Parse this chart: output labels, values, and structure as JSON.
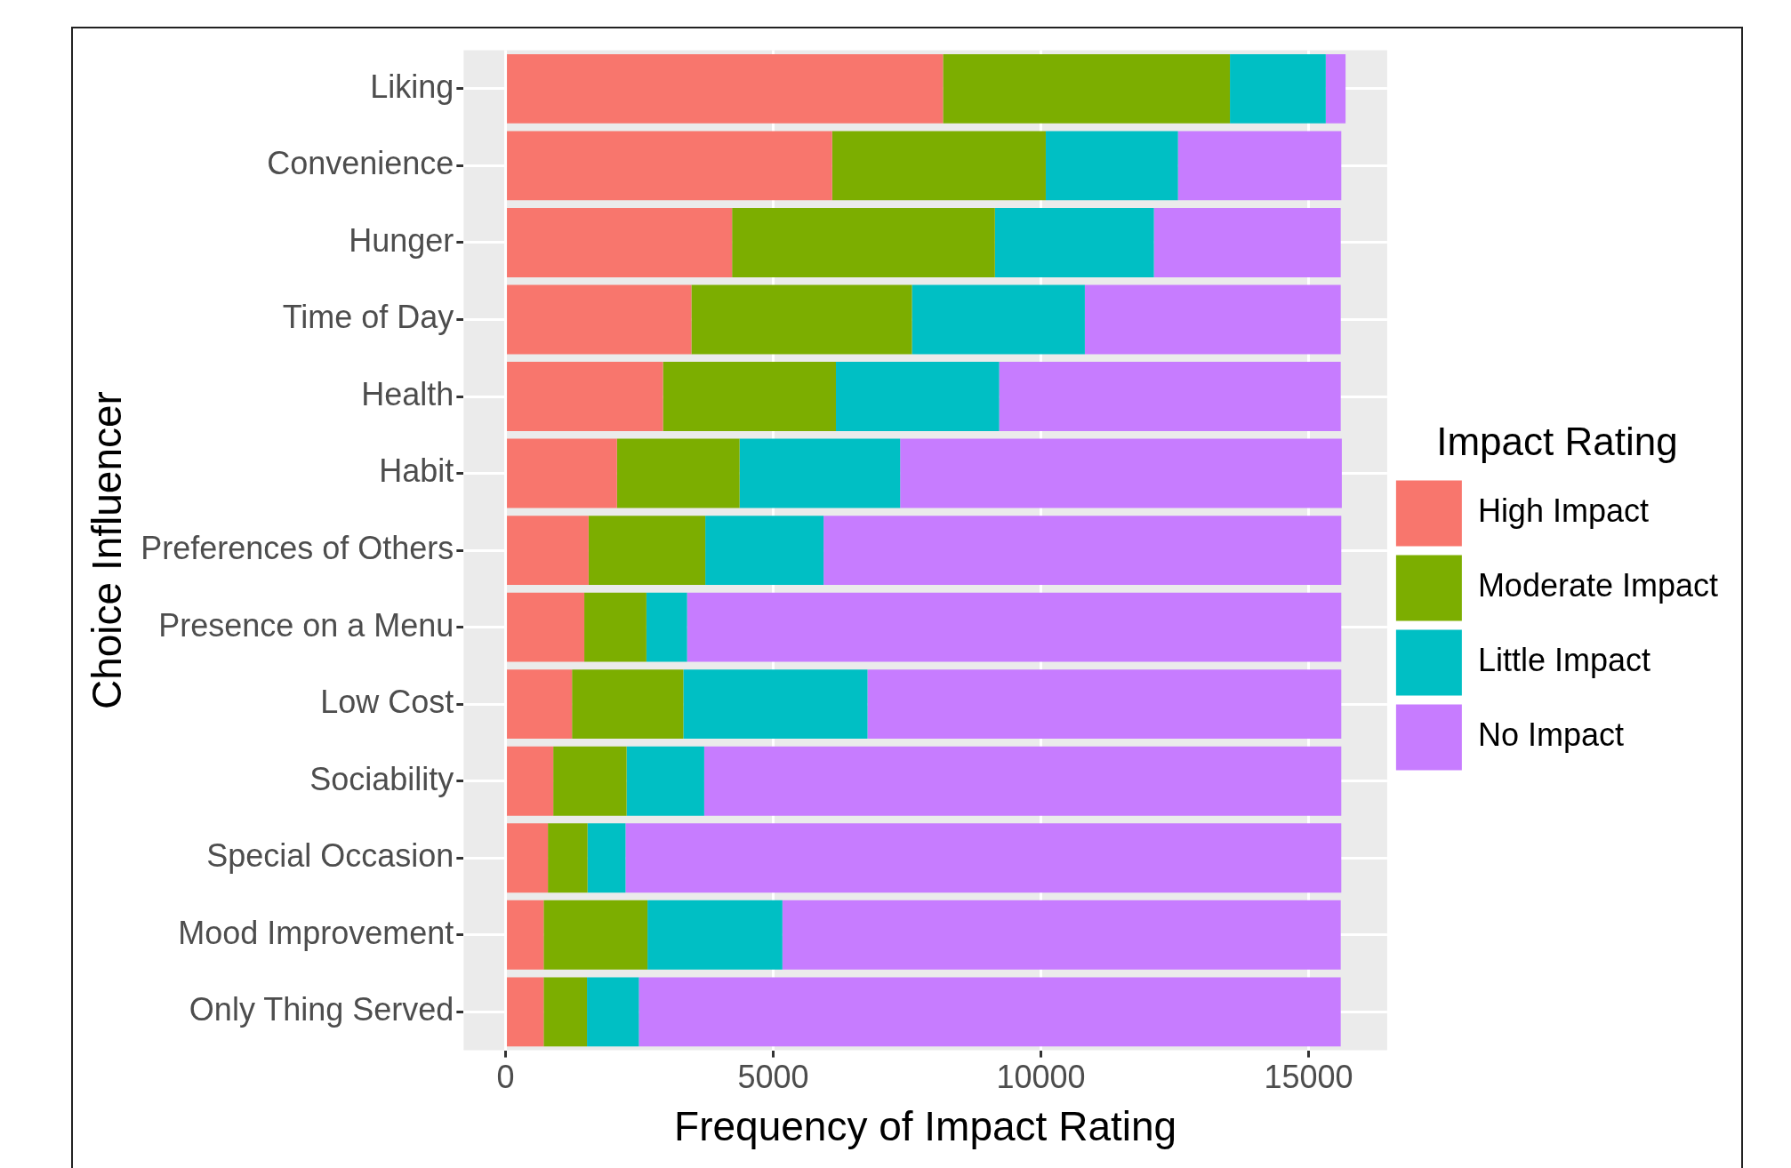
{
  "chart_data": {
    "type": "bar",
    "orientation": "horizontal",
    "stacked": true,
    "xlabel": "Frequency of Impact Rating",
    "ylabel": "Choice Influencer",
    "legend_title": "Impact Rating",
    "categories": [
      "Liking",
      "Convenience",
      "Hunger",
      "Time of Day",
      "Health",
      "Habit",
      "Preferences of Others",
      "Presence on a Menu",
      "Low Cost",
      "Sociability",
      "Special Occasion",
      "Mood Improvement",
      "Only Thing Served"
    ],
    "series": [
      {
        "name": "High Impact",
        "color": "#f8766d",
        "values": [
          8170,
          6100,
          4230,
          3470,
          2940,
          2080,
          1550,
          1470,
          1240,
          890,
          790,
          710,
          710
        ]
      },
      {
        "name": "Moderate Impact",
        "color": "#7cae00",
        "values": [
          5360,
          3990,
          4910,
          4120,
          3230,
          2290,
          2180,
          1160,
          2080,
          1370,
          740,
          1940,
          810
        ]
      },
      {
        "name": "Little Impact",
        "color": "#00bfc4",
        "values": [
          1790,
          2470,
          2970,
          3230,
          3050,
          3000,
          2210,
          760,
          3440,
          1450,
          710,
          2520,
          970
        ]
      },
      {
        "name": "No Impact",
        "color": "#c77cff",
        "values": [
          370,
          3050,
          3490,
          4780,
          6380,
          8250,
          9670,
          12220,
          8850,
          11900,
          13370,
          10430,
          13110
        ]
      }
    ],
    "xlim": [
      -784,
      16467
    ],
    "xticks": [
      0,
      5000,
      10000,
      15000
    ],
    "grid": true,
    "legend": "right"
  }
}
